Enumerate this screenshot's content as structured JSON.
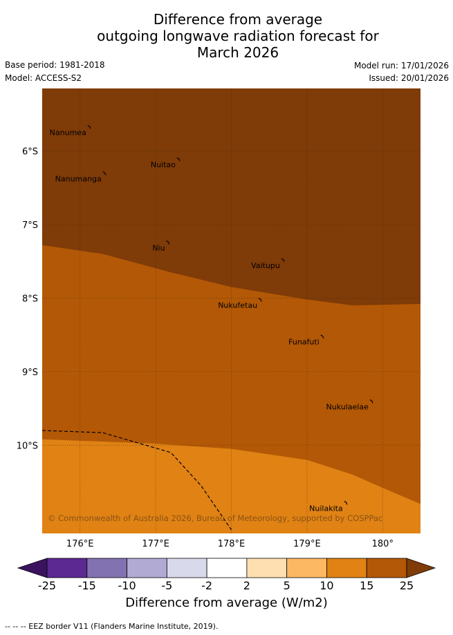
{
  "title": {
    "line1": "Difference from average",
    "line2": "outgoing longwave radiation forecast for",
    "line3": "March 2026"
  },
  "meta": {
    "base_period": "Base period: 1981-2018",
    "model": "Model: ACCESS-S2",
    "model_run": "Model run: 17/01/2026",
    "issued": "Issued: 20/01/2026"
  },
  "map": {
    "lon_range": [
      175.5,
      180.5
    ],
    "lat_range": [
      -11.2,
      -5.15
    ],
    "lat_ticks": [
      {
        "value": -6,
        "label": "6°S"
      },
      {
        "value": -7,
        "label": "7°S"
      },
      {
        "value": -8,
        "label": "8°S"
      },
      {
        "value": -9,
        "label": "9°S"
      },
      {
        "value": -10,
        "label": "10°S"
      }
    ],
    "lon_ticks": [
      {
        "value": 176,
        "label": "176°E"
      },
      {
        "value": 177,
        "label": "177°E"
      },
      {
        "value": 178,
        "label": "178°E"
      },
      {
        "value": 179,
        "label": "179°E"
      },
      {
        "value": 180,
        "label": "180°"
      }
    ],
    "contour_boundaries": [
      {
        "from_class": "15 to 25",
        "to_class": "above 25",
        "points": [
          [
            175.5,
            -7.28
          ],
          [
            176.3,
            -7.4
          ],
          [
            177.2,
            -7.65
          ],
          [
            178.0,
            -7.85
          ],
          [
            179.0,
            -8.02
          ],
          [
            179.6,
            -8.1
          ],
          [
            180.5,
            -8.08
          ]
        ]
      },
      {
        "from_class": "10 to 15",
        "to_class": "15 to 25",
        "points": [
          [
            175.5,
            -9.92
          ],
          [
            177.0,
            -9.98
          ],
          [
            178.0,
            -10.05
          ],
          [
            179.0,
            -10.2
          ],
          [
            179.6,
            -10.4
          ],
          [
            180.0,
            -10.58
          ],
          [
            180.5,
            -10.8
          ]
        ]
      }
    ],
    "eez_border": [
      [
        175.5,
        -9.8
      ],
      [
        176.3,
        -9.83
      ],
      [
        177.2,
        -10.1
      ],
      [
        177.6,
        -10.55
      ],
      [
        178.0,
        -11.15
      ]
    ],
    "islands": [
      {
        "name": "Nanumea",
        "lon": 176.12,
        "lat": -5.67
      },
      {
        "name": "Nuitao",
        "lon": 177.3,
        "lat": -6.11
      },
      {
        "name": "Nanumanga",
        "lon": 176.32,
        "lat": -6.3
      },
      {
        "name": "Niu",
        "lon": 177.16,
        "lat": -7.24
      },
      {
        "name": "Vaitupu",
        "lon": 178.68,
        "lat": -7.48
      },
      {
        "name": "Nukufetau",
        "lon": 178.38,
        "lat": -8.02
      },
      {
        "name": "Funafuti",
        "lon": 179.2,
        "lat": -8.52
      },
      {
        "name": "Nukulaelae",
        "lon": 179.85,
        "lat": -9.4
      },
      {
        "name": "Nuilakita",
        "lon": 179.51,
        "lat": -10.78
      }
    ],
    "copyright": "© Commonwealth of Australia 2026, Bureau of Meteorology, supported by COSPPac"
  },
  "colorbar": {
    "title": "Difference from average (W/m2)",
    "classes": [
      {
        "range": "below -25",
        "color": "#3a1360"
      },
      {
        "range": "-25 to -15",
        "color": "#5c2891"
      },
      {
        "range": "-15 to -10",
        "color": "#8272b1"
      },
      {
        "range": "-10 to -5",
        "color": "#b1aad3"
      },
      {
        "range": "-5 to -2",
        "color": "#d9d9ec"
      },
      {
        "range": "-2 to 2",
        "color": "#ffffff"
      },
      {
        "range": "2 to 5",
        "color": "#fddfb2"
      },
      {
        "range": "5 to 10",
        "color": "#fdb863"
      },
      {
        "range": "10 to 15",
        "color": "#e08214"
      },
      {
        "range": "15 to 25",
        "color": "#b35806"
      },
      {
        "range": "above 25",
        "color": "#7f3b08"
      }
    ],
    "tick_labels": [
      "-25",
      "-15",
      "-10",
      "-5",
      "-2",
      "2",
      "5",
      "10",
      "15",
      "25"
    ]
  },
  "footer": "-- -- -- EEZ border V11 (Flanders Marine Institute, 2019)."
}
